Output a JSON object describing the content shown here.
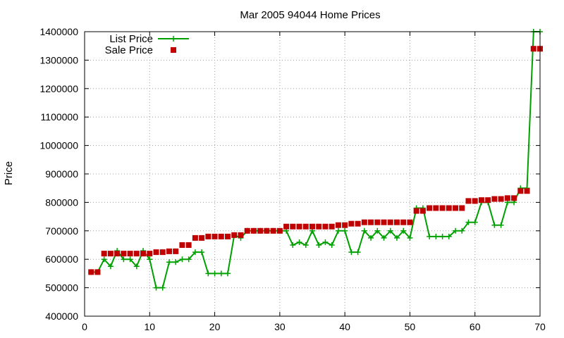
{
  "chart_data": {
    "type": "line",
    "title": "Mar 2005 94044 Home Prices",
    "xlabel": "",
    "ylabel": "Price",
    "xlim": [
      0,
      70
    ],
    "ylim": [
      400000,
      1400000
    ],
    "x_ticks": [
      0,
      10,
      20,
      30,
      40,
      50,
      60,
      70
    ],
    "y_ticks": [
      400000,
      500000,
      600000,
      700000,
      800000,
      900000,
      1000000,
      1100000,
      1200000,
      1300000,
      1400000
    ],
    "grid": true,
    "legend_position": "top-left",
    "colors": {
      "list": "#00a000",
      "sale": "#c00000"
    },
    "x": [
      1,
      2,
      3,
      4,
      5,
      6,
      7,
      8,
      9,
      10,
      11,
      12,
      13,
      14,
      15,
      16,
      17,
      18,
      19,
      20,
      21,
      22,
      23,
      24,
      25,
      26,
      27,
      28,
      29,
      30,
      31,
      32,
      33,
      34,
      35,
      36,
      37,
      38,
      39,
      40,
      41,
      42,
      43,
      44,
      45,
      46,
      47,
      48,
      49,
      50,
      51,
      52,
      53,
      54,
      55,
      56,
      57,
      58,
      59,
      60,
      61,
      62,
      63,
      64,
      65,
      66,
      67,
      68,
      69,
      70
    ],
    "series": [
      {
        "name": "List Price",
        "style": "linespoints",
        "values": [
          555000,
          555000,
          600000,
          575000,
          630000,
          600000,
          600000,
          575000,
          630000,
          600000,
          500000,
          500000,
          590000,
          590000,
          600000,
          600000,
          625000,
          625000,
          550000,
          550000,
          550000,
          550000,
          685000,
          675000,
          700000,
          700000,
          700000,
          700000,
          700000,
          700000,
          700000,
          650000,
          660000,
          650000,
          700000,
          650000,
          660000,
          650000,
          700000,
          700000,
          625000,
          625000,
          700000,
          675000,
          700000,
          675000,
          700000,
          675000,
          700000,
          675000,
          780000,
          780000,
          680000,
          680000,
          680000,
          680000,
          700000,
          700000,
          730000,
          730000,
          800000,
          800000,
          720000,
          720000,
          800000,
          800000,
          850000,
          850000,
          1400000,
          1400000
        ]
      },
      {
        "name": "Sale Price",
        "style": "points",
        "values": [
          555000,
          555000,
          620000,
          620000,
          620000,
          620000,
          620000,
          620000,
          620000,
          620000,
          625000,
          625000,
          628000,
          628000,
          650000,
          650000,
          675000,
          675000,
          680000,
          680000,
          680000,
          680000,
          685000,
          685000,
          700000,
          700000,
          700000,
          700000,
          700000,
          700000,
          715000,
          715000,
          715000,
          715000,
          715000,
          715000,
          715000,
          715000,
          720000,
          720000,
          725000,
          725000,
          730000,
          730000,
          730000,
          730000,
          730000,
          730000,
          730000,
          730000,
          770000,
          770000,
          780000,
          780000,
          780000,
          780000,
          780000,
          780000,
          805000,
          805000,
          808000,
          808000,
          812000,
          812000,
          815000,
          815000,
          840000,
          840000,
          1340000,
          1340000
        ]
      }
    ]
  }
}
